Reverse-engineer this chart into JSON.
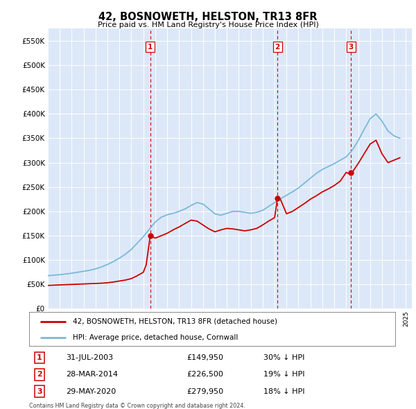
{
  "title": "42, BOSNOWETH, HELSTON, TR13 8FR",
  "subtitle": "Price paid vs. HM Land Registry's House Price Index (HPI)",
  "plot_bg_color": "#dce8f8",
  "ylim": [
    0,
    575000
  ],
  "yticks": [
    0,
    50000,
    100000,
    150000,
    200000,
    250000,
    300000,
    350000,
    400000,
    450000,
    500000,
    550000
  ],
  "transactions": [
    {
      "date_num": 2003.58,
      "price": 149950,
      "label": "1"
    },
    {
      "date_num": 2014.24,
      "price": 226500,
      "label": "2"
    },
    {
      "date_num": 2020.41,
      "price": 279950,
      "label": "3"
    }
  ],
  "transaction_dates": [
    "31-JUL-2003",
    "28-MAR-2014",
    "29-MAY-2020"
  ],
  "transaction_prices": [
    "£149,950",
    "£226,500",
    "£279,950"
  ],
  "transaction_pcts": [
    "30% ↓ HPI",
    "19% ↓ HPI",
    "18% ↓ HPI"
  ],
  "hpi_color": "#7bb8d8",
  "price_color": "#cc0000",
  "vline_color": "#cc0000",
  "legend_label_price": "42, BOSNOWETH, HELSTON, TR13 8FR (detached house)",
  "legend_label_hpi": "HPI: Average price, detached house, Cornwall",
  "footnote": "Contains HM Land Registry data © Crown copyright and database right 2024.\nThis data is licensed under the Open Government Licence v3.0.",
  "hpi_years": [
    1995,
    1995.5,
    1996,
    1996.5,
    1997,
    1997.5,
    1998,
    1998.5,
    1999,
    1999.5,
    2000,
    2000.5,
    2001,
    2001.5,
    2002,
    2002.5,
    2003,
    2003.5,
    2004,
    2004.5,
    2005,
    2005.5,
    2006,
    2006.5,
    2007,
    2007.5,
    2008,
    2008.5,
    2009,
    2009.5,
    2010,
    2010.5,
    2011,
    2011.5,
    2012,
    2012.5,
    2013,
    2013.5,
    2014,
    2014.5,
    2015,
    2015.5,
    2016,
    2016.5,
    2017,
    2017.5,
    2018,
    2018.5,
    2019,
    2019.5,
    2020,
    2020.5,
    2021,
    2021.5,
    2022,
    2022.5,
    2023,
    2023.5,
    2024,
    2024.5
  ],
  "hpi_values": [
    68000,
    69000,
    70000,
    71500,
    73000,
    75000,
    77000,
    79000,
    82000,
    86000,
    91000,
    97000,
    104000,
    112000,
    122000,
    135000,
    148000,
    163000,
    178000,
    188000,
    193000,
    196000,
    200000,
    205000,
    212000,
    218000,
    215000,
    205000,
    195000,
    192000,
    196000,
    200000,
    200000,
    198000,
    196000,
    198000,
    202000,
    210000,
    218000,
    226000,
    233000,
    240000,
    248000,
    258000,
    268000,
    278000,
    286000,
    292000,
    298000,
    305000,
    312000,
    325000,
    345000,
    368000,
    390000,
    400000,
    385000,
    365000,
    355000,
    350000
  ],
  "price_years": [
    1995,
    1995.5,
    1996,
    1996.5,
    1997,
    1997.5,
    1998,
    1998.5,
    1999,
    1999.5,
    2000,
    2000.5,
    2001,
    2001.5,
    2002,
    2002.5,
    2003,
    2003.24,
    2003.58,
    2004,
    2004.5,
    2005,
    2005.5,
    2006,
    2006.5,
    2007,
    2007.5,
    2008,
    2008.5,
    2009,
    2009.5,
    2010,
    2010.5,
    2011,
    2011.5,
    2012,
    2012.5,
    2013,
    2013.5,
    2014,
    2014.24,
    2014.5,
    2015,
    2015.5,
    2016,
    2016.5,
    2017,
    2017.5,
    2018,
    2018.5,
    2019,
    2019.5,
    2020,
    2020.41,
    2020.5,
    2021,
    2021.5,
    2022,
    2022.5,
    2023,
    2023.5,
    2024,
    2024.5
  ],
  "price_values": [
    48000,
    48500,
    49000,
    49500,
    50000,
    50500,
    51000,
    51500,
    52000,
    52500,
    53500,
    55000,
    57000,
    59000,
    62000,
    68000,
    75000,
    90000,
    149950,
    145000,
    150000,
    155000,
    162000,
    168000,
    175000,
    182000,
    180000,
    172000,
    164000,
    158000,
    162000,
    165000,
    164000,
    162000,
    160000,
    162000,
    165000,
    172000,
    180000,
    187000,
    226500,
    224000,
    195000,
    200000,
    208000,
    216000,
    225000,
    232000,
    240000,
    246000,
    253000,
    262000,
    279950,
    275000,
    280000,
    298000,
    318000,
    338000,
    346000,
    318000,
    300000,
    305000,
    310000
  ]
}
